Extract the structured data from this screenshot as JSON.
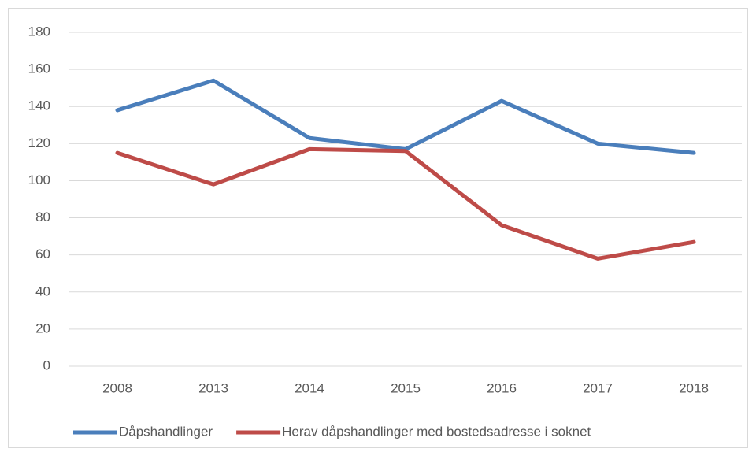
{
  "chart_data": {
    "type": "line",
    "categories": [
      "2008",
      "2013",
      "2014",
      "2015",
      "2016",
      "2017",
      "2018"
    ],
    "series": [
      {
        "name": "Dåpshandlinger",
        "color": "#4a7ebb",
        "values": [
          138,
          154,
          123,
          117,
          143,
          120,
          115
        ]
      },
      {
        "name": "Herav dåpshandlinger med bostedsadresse i soknet",
        "color": "#be4b48",
        "values": [
          115,
          98,
          117,
          116,
          76,
          58,
          67
        ]
      }
    ],
    "ylim": [
      0,
      180
    ],
    "yticks": [
      0,
      20,
      40,
      60,
      80,
      100,
      120,
      140,
      160,
      180
    ],
    "grid": true,
    "legend": "bottom"
  }
}
